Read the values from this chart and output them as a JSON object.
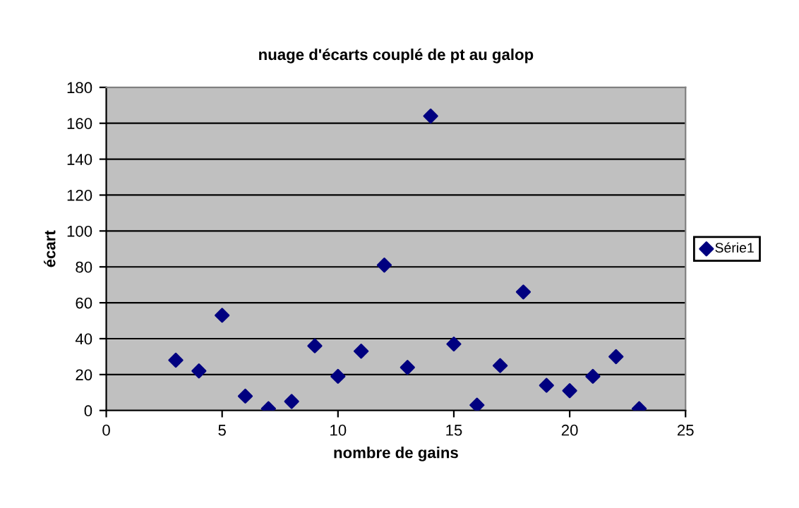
{
  "chart_data": {
    "type": "scatter",
    "title": "nuage d'écarts couplé de pt au galop",
    "xlabel": "nombre de gains",
    "ylabel": "écart",
    "xlim": [
      0,
      25
    ],
    "xticks": [
      0,
      5,
      10,
      15,
      20,
      25
    ],
    "ylim": [
      0,
      180
    ],
    "yticks": [
      0,
      20,
      40,
      60,
      80,
      100,
      120,
      140,
      160,
      180
    ],
    "grid": "y",
    "legend": "right",
    "marker": "diamond",
    "series": [
      {
        "name": "Série1",
        "color": "#000080",
        "x": [
          3,
          4,
          5,
          6,
          7,
          8,
          9,
          10,
          11,
          12,
          13,
          14,
          15,
          16,
          17,
          18,
          19,
          20,
          21,
          22,
          23
        ],
        "values": [
          28,
          22,
          53,
          8,
          1,
          5,
          36,
          19,
          33,
          81,
          24,
          164,
          37,
          3,
          25,
          66,
          14,
          11,
          19,
          30,
          1
        ]
      }
    ]
  }
}
